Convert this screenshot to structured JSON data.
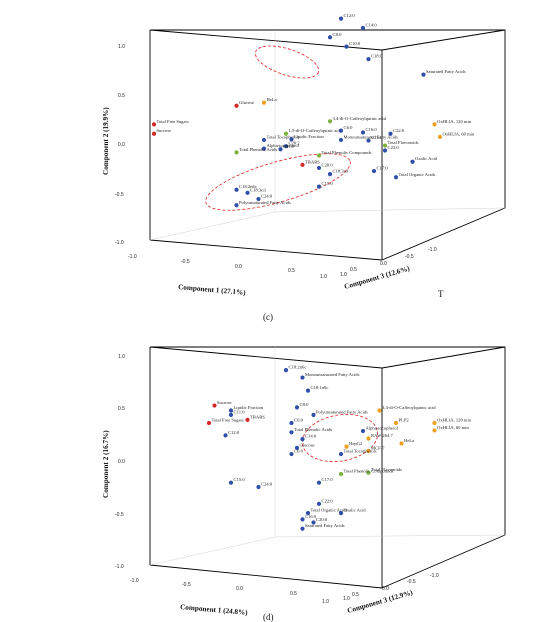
{
  "chart_data": [
    {
      "panel_label": "(c)",
      "type": "scatter",
      "projection": "3d",
      "xlabel": "Component 1 (27.1%)",
      "ylabel": "Component 2 (19.9%)",
      "zlabel": "Component 3 (12.6%)",
      "x_ticks": [
        "-1.0",
        "-0.5",
        "0.0",
        "0.5",
        "1.0"
      ],
      "y_ticks": [
        "1.0",
        "0.5",
        "0.0",
        "-0.5",
        "-1.0"
      ],
      "z_ticks": [
        "1.0",
        "0.5",
        "0.0",
        "-0.5",
        "-1.0"
      ],
      "stray_text": "T",
      "colors": {
        "blue": "#2f4fa8",
        "red": "#d42a2a",
        "green": "#7db33c",
        "orange": "#f0a020",
        "ellipse": "#dd2222"
      },
      "points": [
        {
          "label": "C12:0",
          "color": "blue",
          "x": 0.62,
          "y": 0.03
        },
        {
          "label": "C14:0",
          "color": "blue",
          "x": 0.66,
          "y": 0.045
        },
        {
          "label": "C8:0",
          "color": "blue",
          "x": 0.6,
          "y": 0.06
        },
        {
          "label": "C10:0",
          "color": "blue",
          "x": 0.63,
          "y": 0.075
        },
        {
          "label": "C18:0",
          "color": "blue",
          "x": 0.67,
          "y": 0.095
        },
        {
          "label": "Saturated Fatty Acids",
          "color": "blue",
          "x": 0.77,
          "y": 0.12
        },
        {
          "label": "Glucose",
          "color": "red",
          "x": 0.43,
          "y": 0.17
        },
        {
          "label": "HeLa",
          "color": "orange",
          "x": 0.48,
          "y": 0.165
        },
        {
          "label": "3,4-di-O-Caffeoylquinic acid",
          "color": "green",
          "x": 0.6,
          "y": 0.195
        },
        {
          "label": "OxHLIA, 120 min",
          "color": "orange",
          "x": 0.79,
          "y": 0.2
        },
        {
          "label": "1,5-di-O-Caffeoylquinic acid",
          "color": "green",
          "x": 0.52,
          "y": 0.215
        },
        {
          "label": "C6:0",
          "color": "blue",
          "x": 0.62,
          "y": 0.21
        },
        {
          "label": "C16:0",
          "color": "blue",
          "x": 0.66,
          "y": 0.213
        },
        {
          "label": "C22:0",
          "color": "blue",
          "x": 0.71,
          "y": 0.215
        },
        {
          "label": "OxHLIA, 60 min",
          "color": "orange",
          "x": 0.8,
          "y": 0.22
        },
        {
          "label": "Total Tocopherols",
          "color": "blue",
          "x": 0.48,
          "y": 0.225
        },
        {
          "label": "Lipidic Fraction",
          "color": "blue",
          "x": 0.53,
          "y": 0.224
        },
        {
          "label": "Monounsaturated Fatty Acids",
          "color": "blue",
          "x": 0.62,
          "y": 0.225
        },
        {
          "label": "C13:0",
          "color": "blue",
          "x": 0.67,
          "y": 0.226
        },
        {
          "label": "Total Free Sugars",
          "color": "red",
          "x": 0.28,
          "y": 0.2
        },
        {
          "label": "Sucrose",
          "color": "red",
          "x": 0.28,
          "y": 0.215
        },
        {
          "label": "C20:2",
          "color": "blue",
          "x": 0.52,
          "y": 0.235
        },
        {
          "label": "Total Flavonoids",
          "color": "green",
          "x": 0.7,
          "y": 0.234
        },
        {
          "label": "Alpha-tocopherol",
          "color": "blue",
          "x": 0.48,
          "y": 0.239
        },
        {
          "label": "C11:0",
          "color": "blue",
          "x": 0.51,
          "y": 0.24
        },
        {
          "label": "C23:0",
          "color": "blue",
          "x": 0.7,
          "y": 0.242
        },
        {
          "label": "Total Phenolic Compounds",
          "color": "green",
          "x": 0.58,
          "y": 0.25
        },
        {
          "label": "Total Phenolic Acids",
          "color": "green",
          "x": 0.43,
          "y": 0.245
        },
        {
          "label": "Oxalic Acid",
          "color": "blue",
          "x": 0.75,
          "y": 0.26
        },
        {
          "label": "TBARS",
          "color": "red",
          "x": 0.55,
          "y": 0.265
        },
        {
          "label": "C20:0",
          "color": "blue",
          "x": 0.58,
          "y": 0.27
        },
        {
          "label": "C17:0",
          "color": "blue",
          "x": 0.68,
          "y": 0.275
        },
        {
          "label": "C18:3n3",
          "color": "blue",
          "x": 0.6,
          "y": 0.28
        },
        {
          "label": "Total Organic Acids",
          "color": "blue",
          "x": 0.72,
          "y": 0.285
        },
        {
          "label": "C15:0",
          "color": "blue",
          "x": 0.58,
          "y": 0.3
        },
        {
          "label": "C18:2n6c",
          "color": "blue",
          "x": 0.43,
          "y": 0.305
        },
        {
          "label": "C18:3n3",
          "color": "blue",
          "x": 0.45,
          "y": 0.31
        },
        {
          "label": "C24:0",
          "color": "blue",
          "x": 0.47,
          "y": 0.32
        },
        {
          "label": "Polyunsaturated Fatty Acids",
          "color": "blue",
          "x": 0.43,
          "y": 0.33
        }
      ]
    },
    {
      "panel_label": "(d)",
      "type": "scatter",
      "projection": "3d",
      "xlabel": "Component 1 (24.8%)",
      "ylabel": "Component 2 (16.7%)",
      "zlabel": "Component 3 (12.9%)",
      "x_ticks": [
        "-1.0",
        "-0.5",
        "0.0",
        "0.5",
        "1.0"
      ],
      "y_ticks": [
        "1.0",
        "0.5",
        "0.0",
        "-0.5",
        "-1.0"
      ],
      "z_ticks": [
        "1.0",
        "0.5",
        "0.0",
        "-0.5",
        "-1.0"
      ],
      "colors": {
        "blue": "#2f4fa8",
        "red": "#d42a2a",
        "green": "#7db33c",
        "orange": "#f0a020",
        "ellipse": "#dd2222"
      },
      "points": [
        {
          "label": "C18:2n6c",
          "color": "blue",
          "x": 0.52,
          "y": 0.595
        },
        {
          "label": "Monounsaturated Fatty Acids",
          "color": "blue",
          "x": 0.55,
          "y": 0.607
        },
        {
          "label": "C18:1n9c",
          "color": "blue",
          "x": 0.56,
          "y": 0.628
        },
        {
          "label": "C8:0",
          "color": "blue",
          "x": 0.54,
          "y": 0.655
        },
        {
          "label": "Polyunsaturated Fatty Acids",
          "color": "blue",
          "x": 0.57,
          "y": 0.667
        },
        {
          "label": "Sucrose",
          "color": "red",
          "x": 0.39,
          "y": 0.652
        },
        {
          "label": "Lipidic Fraction",
          "color": "blue",
          "x": 0.42,
          "y": 0.66
        },
        {
          "label": "C11:0",
          "color": "blue",
          "x": 0.42,
          "y": 0.667
        },
        {
          "label": "TBARS",
          "color": "red",
          "x": 0.45,
          "y": 0.675
        },
        {
          "label": "Total Free Sugars",
          "color": "red",
          "x": 0.38,
          "y": 0.68
        },
        {
          "label": "C12:0",
          "color": "blue",
          "x": 0.41,
          "y": 0.7
        },
        {
          "label": "C6:0",
          "color": "blue",
          "x": 0.53,
          "y": 0.68
        },
        {
          "label": "Total Phenolic Acids",
          "color": "blue",
          "x": 0.53,
          "y": 0.695
        },
        {
          "label": "C14:0",
          "color": "blue",
          "x": 0.55,
          "y": 0.706
        },
        {
          "label": "Glucose",
          "color": "blue",
          "x": 0.54,
          "y": 0.72
        },
        {
          "label": "C6:0",
          "color": "blue",
          "x": 0.53,
          "y": 0.73
        },
        {
          "label": "3,4-di-O-Caffeoylquinic acid",
          "color": "orange",
          "x": 0.69,
          "y": 0.66
        },
        {
          "label": "Alpha-tocopherol",
          "color": "blue",
          "x": 0.66,
          "y": 0.693
        },
        {
          "label": "PLP2",
          "color": "orange",
          "x": 0.72,
          "y": 0.68
        },
        {
          "label": "OxHLIA, 120 min",
          "color": "orange",
          "x": 0.79,
          "y": 0.68
        },
        {
          "label": "OxHLIA, 60 min",
          "color": "orange",
          "x": 0.79,
          "y": 0.692
        },
        {
          "label": "RAW 264.7",
          "color": "orange",
          "x": 0.67,
          "y": 0.705
        },
        {
          "label": "HeLa",
          "color": "orange",
          "x": 0.73,
          "y": 0.713
        },
        {
          "label": "HepG2",
          "color": "orange",
          "x": 0.63,
          "y": 0.718
        },
        {
          "label": "MCF-7",
          "color": "orange",
          "x": 0.67,
          "y": 0.725
        },
        {
          "label": "Total Tocopherols",
          "color": "blue",
          "x": 0.62,
          "y": 0.73
        },
        {
          "label": "Total Flavonoids",
          "color": "green",
          "x": 0.67,
          "y": 0.76
        },
        {
          "label": "Total Phenolic Compounds",
          "color": "green",
          "x": 0.62,
          "y": 0.762
        },
        {
          "label": "C15:0",
          "color": "blue",
          "x": 0.42,
          "y": 0.776
        },
        {
          "label": "C17:0",
          "color": "blue",
          "x": 0.58,
          "y": 0.776
        },
        {
          "label": "C24:0",
          "color": "blue",
          "x": 0.47,
          "y": 0.783
        },
        {
          "label": "C22:0",
          "color": "blue",
          "x": 0.58,
          "y": 0.81
        },
        {
          "label": "Total Organic Acids",
          "color": "blue",
          "x": 0.56,
          "y": 0.825
        },
        {
          "label": "Oxalic Acid",
          "color": "blue",
          "x": 0.62,
          "y": 0.825
        },
        {
          "label": "C16:0",
          "color": "blue",
          "x": 0.55,
          "y": 0.835
        },
        {
          "label": "C20:0",
          "color": "blue",
          "x": 0.57,
          "y": 0.84
        },
        {
          "label": "Saturated Fatty Acids",
          "color": "blue",
          "x": 0.55,
          "y": 0.85
        }
      ]
    }
  ]
}
